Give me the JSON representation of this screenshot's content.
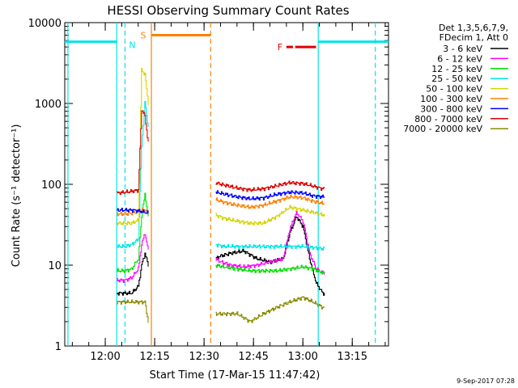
{
  "chart_data": {
    "type": "line",
    "title": "HESSI Observing Summary Count Rates",
    "xlabel": "Start Time (17-Mar-15 11:47:42)",
    "ylabel": "Count Rate (s⁻¹ detector⁻¹)",
    "y_scale": "log",
    "ylim": [
      1,
      10000
    ],
    "xlim": [
      "11:47:42",
      "13:26:00"
    ],
    "x_ticks": [
      "12:00",
      "12:15",
      "12:30",
      "12:45",
      "13:00",
      "13:15"
    ],
    "y_ticks": [
      "1",
      "10",
      "100",
      "1000",
      "10000"
    ],
    "timestamp": "9-Sep-2017 07:28",
    "legend": {
      "placement": "right",
      "header": [
        "Det 1,3,5,6,7,9,",
        "FDecim 1, Att 0"
      ],
      "entries": [
        {
          "label": "3 - 6 keV",
          "color": "#000000"
        },
        {
          "label": "6 - 12 keV",
          "color": "#ff00ff"
        },
        {
          "label": "12 - 25 keV",
          "color": "#00e000"
        },
        {
          "label": "25 - 50 keV",
          "color": "#00e5e5"
        },
        {
          "label": "50 - 100 keV",
          "color": "#d4d400"
        },
        {
          "label": "100 - 300 keV",
          "color": "#ff8000"
        },
        {
          "label": "300 - 800 keV",
          "color": "#0000ff"
        },
        {
          "label": "800 - 7000 keV",
          "color": "#e00000"
        },
        {
          "label": "7000 - 20000 keV",
          "color": "#8b8b00"
        }
      ]
    },
    "segments": [
      {
        "start": "12:03:30",
        "end": "12:13:10"
      },
      {
        "start": "12:33:20",
        "end": "13:06:40"
      }
    ],
    "series": [
      {
        "name": "3 - 6 keV",
        "color": "#000000",
        "x": [
          "12:03:30",
          "12:06:00",
          "12:08:00",
          "12:10:00",
          "12:11:00",
          "12:12:00",
          "12:13:00",
          "12:33:20",
          "12:35:00",
          "12:38:00",
          "12:42:00",
          "12:46:00",
          "12:50:00",
          "12:54:00",
          "12:56:00",
          "12:58:00",
          "13:00:00",
          "13:02:00",
          "13:04:00",
          "13:06:00"
        ],
        "y": [
          4.5,
          4.5,
          4.5,
          5.5,
          10,
          14,
          10,
          12,
          13,
          14,
          15,
          12,
          11,
          12,
          25,
          40,
          30,
          12,
          6,
          4.5
        ]
      },
      {
        "name": "6 - 12 keV",
        "color": "#ff00ff",
        "x": [
          "12:03:30",
          "12:06:00",
          "12:08:00",
          "12:10:00",
          "12:11:00",
          "12:12:00",
          "12:13:00",
          "12:33:20",
          "12:35:00",
          "12:38:00",
          "12:42:00",
          "12:46:00",
          "12:50:00",
          "12:54:00",
          "12:56:00",
          "12:58:00",
          "13:00:00",
          "13:02:00",
          "13:04:00",
          "13:06:00"
        ],
        "y": [
          6.5,
          6.5,
          7,
          9,
          18,
          25,
          15,
          12,
          11,
          10,
          9.5,
          10,
          11,
          12,
          28,
          45,
          35,
          14,
          9,
          8
        ]
      },
      {
        "name": "12 - 25 keV",
        "color": "#00e000",
        "x": [
          "12:03:30",
          "12:06:00",
          "12:08:00",
          "12:10:00",
          "12:11:00",
          "12:12:00",
          "12:13:00",
          "12:33:20",
          "12:36:00",
          "12:40:00",
          "12:44:00",
          "12:48:00",
          "12:52:00",
          "12:56:00",
          "13:00:00",
          "13:03:00",
          "13:06:00"
        ],
        "y": [
          8.5,
          8.5,
          9,
          12,
          40,
          75,
          40,
          10,
          9.5,
          9,
          8.5,
          8.5,
          8.5,
          9,
          9.5,
          9,
          8
        ]
      },
      {
        "name": "25 - 50 keV",
        "color": "#00e5e5",
        "x": [
          "12:03:30",
          "12:06:00",
          "12:08:00",
          "12:10:00",
          "12:11:00",
          "12:12:00",
          "12:13:00",
          "12:33:20",
          "12:36:00",
          "12:40:00",
          "12:44:00",
          "12:48:00",
          "12:52:00",
          "12:56:00",
          "13:00:00",
          "13:03:00",
          "13:06:00"
        ],
        "y": [
          17,
          17,
          18,
          21,
          300,
          1050,
          500,
          18,
          17,
          17,
          17,
          17,
          17,
          17,
          17,
          16.5,
          16
        ]
      },
      {
        "name": "50 - 100 keV",
        "color": "#d4d400",
        "x": [
          "12:03:30",
          "12:06:00",
          "12:08:00",
          "12:10:00",
          "12:11:00",
          "12:12:00",
          "12:13:00",
          "12:33:20",
          "12:36:00",
          "12:40:00",
          "12:44:00",
          "12:48:00",
          "12:52:00",
          "12:56:00",
          "13:00:00",
          "13:03:00",
          "13:06:00"
        ],
        "y": [
          33,
          33,
          33,
          36,
          2600,
          2300,
          1000,
          42,
          38,
          35,
          33,
          33,
          40,
          52,
          48,
          45,
          42
        ]
      },
      {
        "name": "100 - 300 keV",
        "color": "#ff8000",
        "x": [
          "12:03:30",
          "12:06:00",
          "12:08:00",
          "12:10:00",
          "12:11:00",
          "12:12:00",
          "12:13:00",
          "12:33:20",
          "12:36:00",
          "12:40:00",
          "12:44:00",
          "12:48:00",
          "12:52:00",
          "12:56:00",
          "13:00:00",
          "13:03:00",
          "13:06:00"
        ],
        "y": [
          43,
          43,
          44,
          46,
          48,
          48,
          45,
          65,
          60,
          55,
          52,
          55,
          62,
          70,
          68,
          62,
          58
        ]
      },
      {
        "name": "300 - 800 keV",
        "color": "#0000ff",
        "x": [
          "12:03:30",
          "12:06:00",
          "12:08:00",
          "12:10:00",
          "12:11:00",
          "12:12:00",
          "12:13:00",
          "12:33:20",
          "12:36:00",
          "12:40:00",
          "12:44:00",
          "12:48:00",
          "12:52:00",
          "12:56:00",
          "13:00:00",
          "13:03:00",
          "13:06:00"
        ],
        "y": [
          48,
          48,
          48,
          47,
          46,
          45,
          44,
          80,
          76,
          70,
          66,
          68,
          75,
          80,
          78,
          72,
          70
        ]
      },
      {
        "name": "800 - 7000 keV",
        "color": "#e00000",
        "x": [
          "12:03:30",
          "12:06:00",
          "12:08:00",
          "12:10:00",
          "12:11:00",
          "12:12:00",
          "12:13:00",
          "12:33:20",
          "12:36:00",
          "12:40:00",
          "12:44:00",
          "12:48:00",
          "12:52:00",
          "12:56:00",
          "13:00:00",
          "13:03:00",
          "13:06:00"
        ],
        "y": [
          78,
          80,
          82,
          85,
          850,
          700,
          320,
          105,
          98,
          90,
          85,
          88,
          96,
          105,
          102,
          95,
          88
        ]
      },
      {
        "name": "7000 - 20000 keV",
        "color": "#8b8b00",
        "x": [
          "12:03:30",
          "12:06:00",
          "12:08:00",
          "12:10:00",
          "12:11:00",
          "12:12:00",
          "12:13:00",
          "12:33:20",
          "12:36:00",
          "12:40:00",
          "12:44:00",
          "12:48:00",
          "12:52:00",
          "12:56:00",
          "13:00:00",
          "13:03:00",
          "13:06:00"
        ],
        "y": [
          3.5,
          3.5,
          3.5,
          3.5,
          3.5,
          3.5,
          2,
          2.5,
          2.5,
          2.5,
          2,
          2.5,
          3,
          3.5,
          4,
          3.5,
          3
        ]
      }
    ],
    "flags": [
      {
        "label": "N",
        "color": "#00e5e5",
        "value": 5800,
        "intervals": [
          [
            "11:47:42",
            "12:03:30"
          ],
          [
            "13:04:40",
            "13:26:00"
          ]
        ]
      },
      {
        "label": "S",
        "color": "#ff8000",
        "value": 7000,
        "intervals": [
          [
            "12:14:00",
            "12:32:00"
          ]
        ]
      },
      {
        "label": "F",
        "color": "#e00000",
        "value": 5000,
        "intervals": [
          [
            "12:55:00",
            "12:57:00"
          ],
          [
            "12:57:40",
            "13:04:00"
          ]
        ]
      }
    ],
    "markers": [
      {
        "time": "11:48:40",
        "color": "#00e5e5",
        "style": "solid"
      },
      {
        "time": "12:03:30",
        "color": "#00e5e5",
        "style": "solid"
      },
      {
        "time": "12:06:00",
        "color": "#00e5e5",
        "style": "dashed"
      },
      {
        "time": "12:14:00",
        "color": "#ff8000",
        "style": "solid"
      },
      {
        "time": "12:32:00",
        "color": "#ff8000",
        "style": "dashed"
      },
      {
        "time": "13:04:40",
        "color": "#00e5e5",
        "style": "solid"
      },
      {
        "time": "13:22:00",
        "color": "#00e5e5",
        "style": "dashed"
      }
    ]
  }
}
